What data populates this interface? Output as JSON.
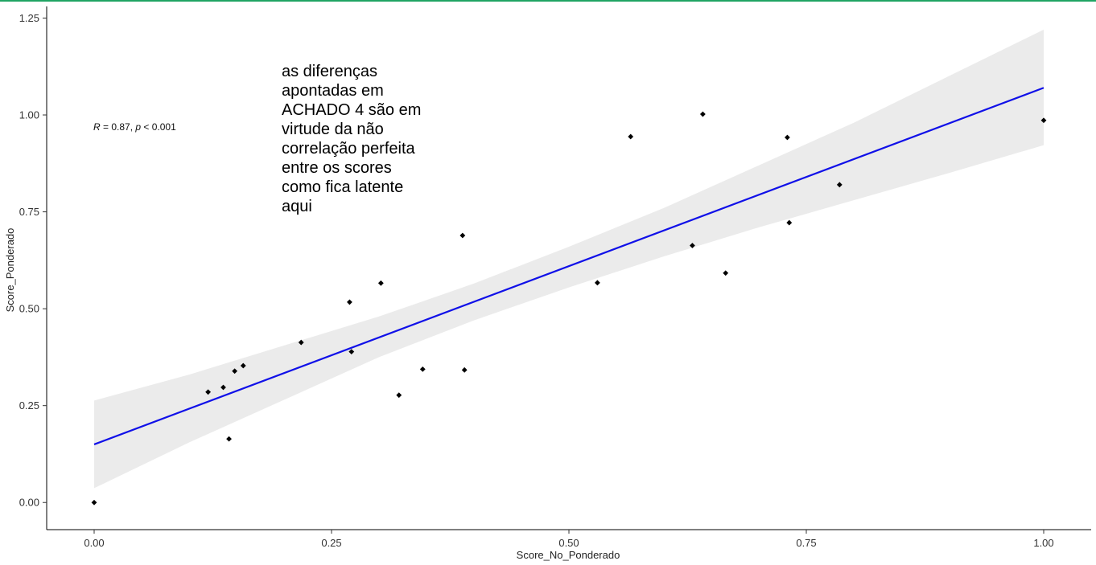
{
  "chart_data": {
    "type": "scatter",
    "xlabel": "Score_No_Ponderado",
    "ylabel": "Score_Ponderado",
    "xlim": [
      -0.05,
      1.05
    ],
    "ylim": [
      -0.07,
      1.28
    ],
    "xticks": [
      0.0,
      0.25,
      0.5,
      0.75,
      1.0
    ],
    "xtick_labels": [
      "0.00",
      "0.25",
      "0.50",
      "0.75",
      "1.00"
    ],
    "yticks": [
      0.0,
      0.25,
      0.5,
      0.75,
      1.0,
      1.25
    ],
    "ytick_labels": [
      "0.00",
      "0.25",
      "0.50",
      "0.75",
      "1.00",
      "1.25"
    ],
    "grid": false,
    "stat_label": {
      "r_symbol": "R",
      "text": " = 0.87, ",
      "p_symbol": "p",
      "p_text": " < 0.001"
    },
    "annotation": {
      "lines": [
        "as diferenças",
        "apontadas em",
        "ACHADO 4 são em",
        "virtude da não",
        "correlação perfeita",
        "entre os scores",
        "como fica latente",
        "aqui"
      ]
    },
    "points": [
      {
        "x": 0.0,
        "y": 0.0
      },
      {
        "x": 0.12,
        "y": 0.285
      },
      {
        "x": 0.136,
        "y": 0.297
      },
      {
        "x": 0.142,
        "y": 0.164
      },
      {
        "x": 0.148,
        "y": 0.339
      },
      {
        "x": 0.157,
        "y": 0.353
      },
      {
        "x": 0.218,
        "y": 0.413
      },
      {
        "x": 0.269,
        "y": 0.517
      },
      {
        "x": 0.271,
        "y": 0.389
      },
      {
        "x": 0.302,
        "y": 0.566
      },
      {
        "x": 0.321,
        "y": 0.277
      },
      {
        "x": 0.346,
        "y": 0.344
      },
      {
        "x": 0.388,
        "y": 0.689
      },
      {
        "x": 0.39,
        "y": 0.342
      },
      {
        "x": 0.53,
        "y": 0.567
      },
      {
        "x": 0.565,
        "y": 0.944
      },
      {
        "x": 0.63,
        "y": 0.663
      },
      {
        "x": 0.641,
        "y": 1.002
      },
      {
        "x": 0.665,
        "y": 0.592
      },
      {
        "x": 0.73,
        "y": 0.942
      },
      {
        "x": 0.732,
        "y": 0.722
      },
      {
        "x": 0.785,
        "y": 0.82
      },
      {
        "x": 1.0,
        "y": 0.986
      }
    ],
    "regression": {
      "intercept": 0.15,
      "slope": 0.92,
      "x_range": [
        0.0,
        1.0
      ],
      "color": "#1010e8"
    },
    "confidence_band": [
      {
        "x": 0.0,
        "lower": 0.037,
        "upper": 0.263
      },
      {
        "x": 0.1,
        "lower": 0.155,
        "upper": 0.33
      },
      {
        "x": 0.2,
        "lower": 0.265,
        "upper": 0.405
      },
      {
        "x": 0.3,
        "lower": 0.375,
        "upper": 0.48
      },
      {
        "x": 0.4,
        "lower": 0.47,
        "upper": 0.565
      },
      {
        "x": 0.5,
        "lower": 0.555,
        "upper": 0.66
      },
      {
        "x": 0.6,
        "lower": 0.635,
        "upper": 0.76
      },
      {
        "x": 0.7,
        "lower": 0.71,
        "upper": 0.87
      },
      {
        "x": 0.8,
        "lower": 0.78,
        "upper": 0.98
      },
      {
        "x": 0.9,
        "lower": 0.85,
        "upper": 1.1
      },
      {
        "x": 1.0,
        "lower": 0.922,
        "upper": 1.22
      }
    ],
    "colors": {
      "band": "#ebebeb",
      "point": "#000000",
      "axis": "#000000"
    }
  }
}
